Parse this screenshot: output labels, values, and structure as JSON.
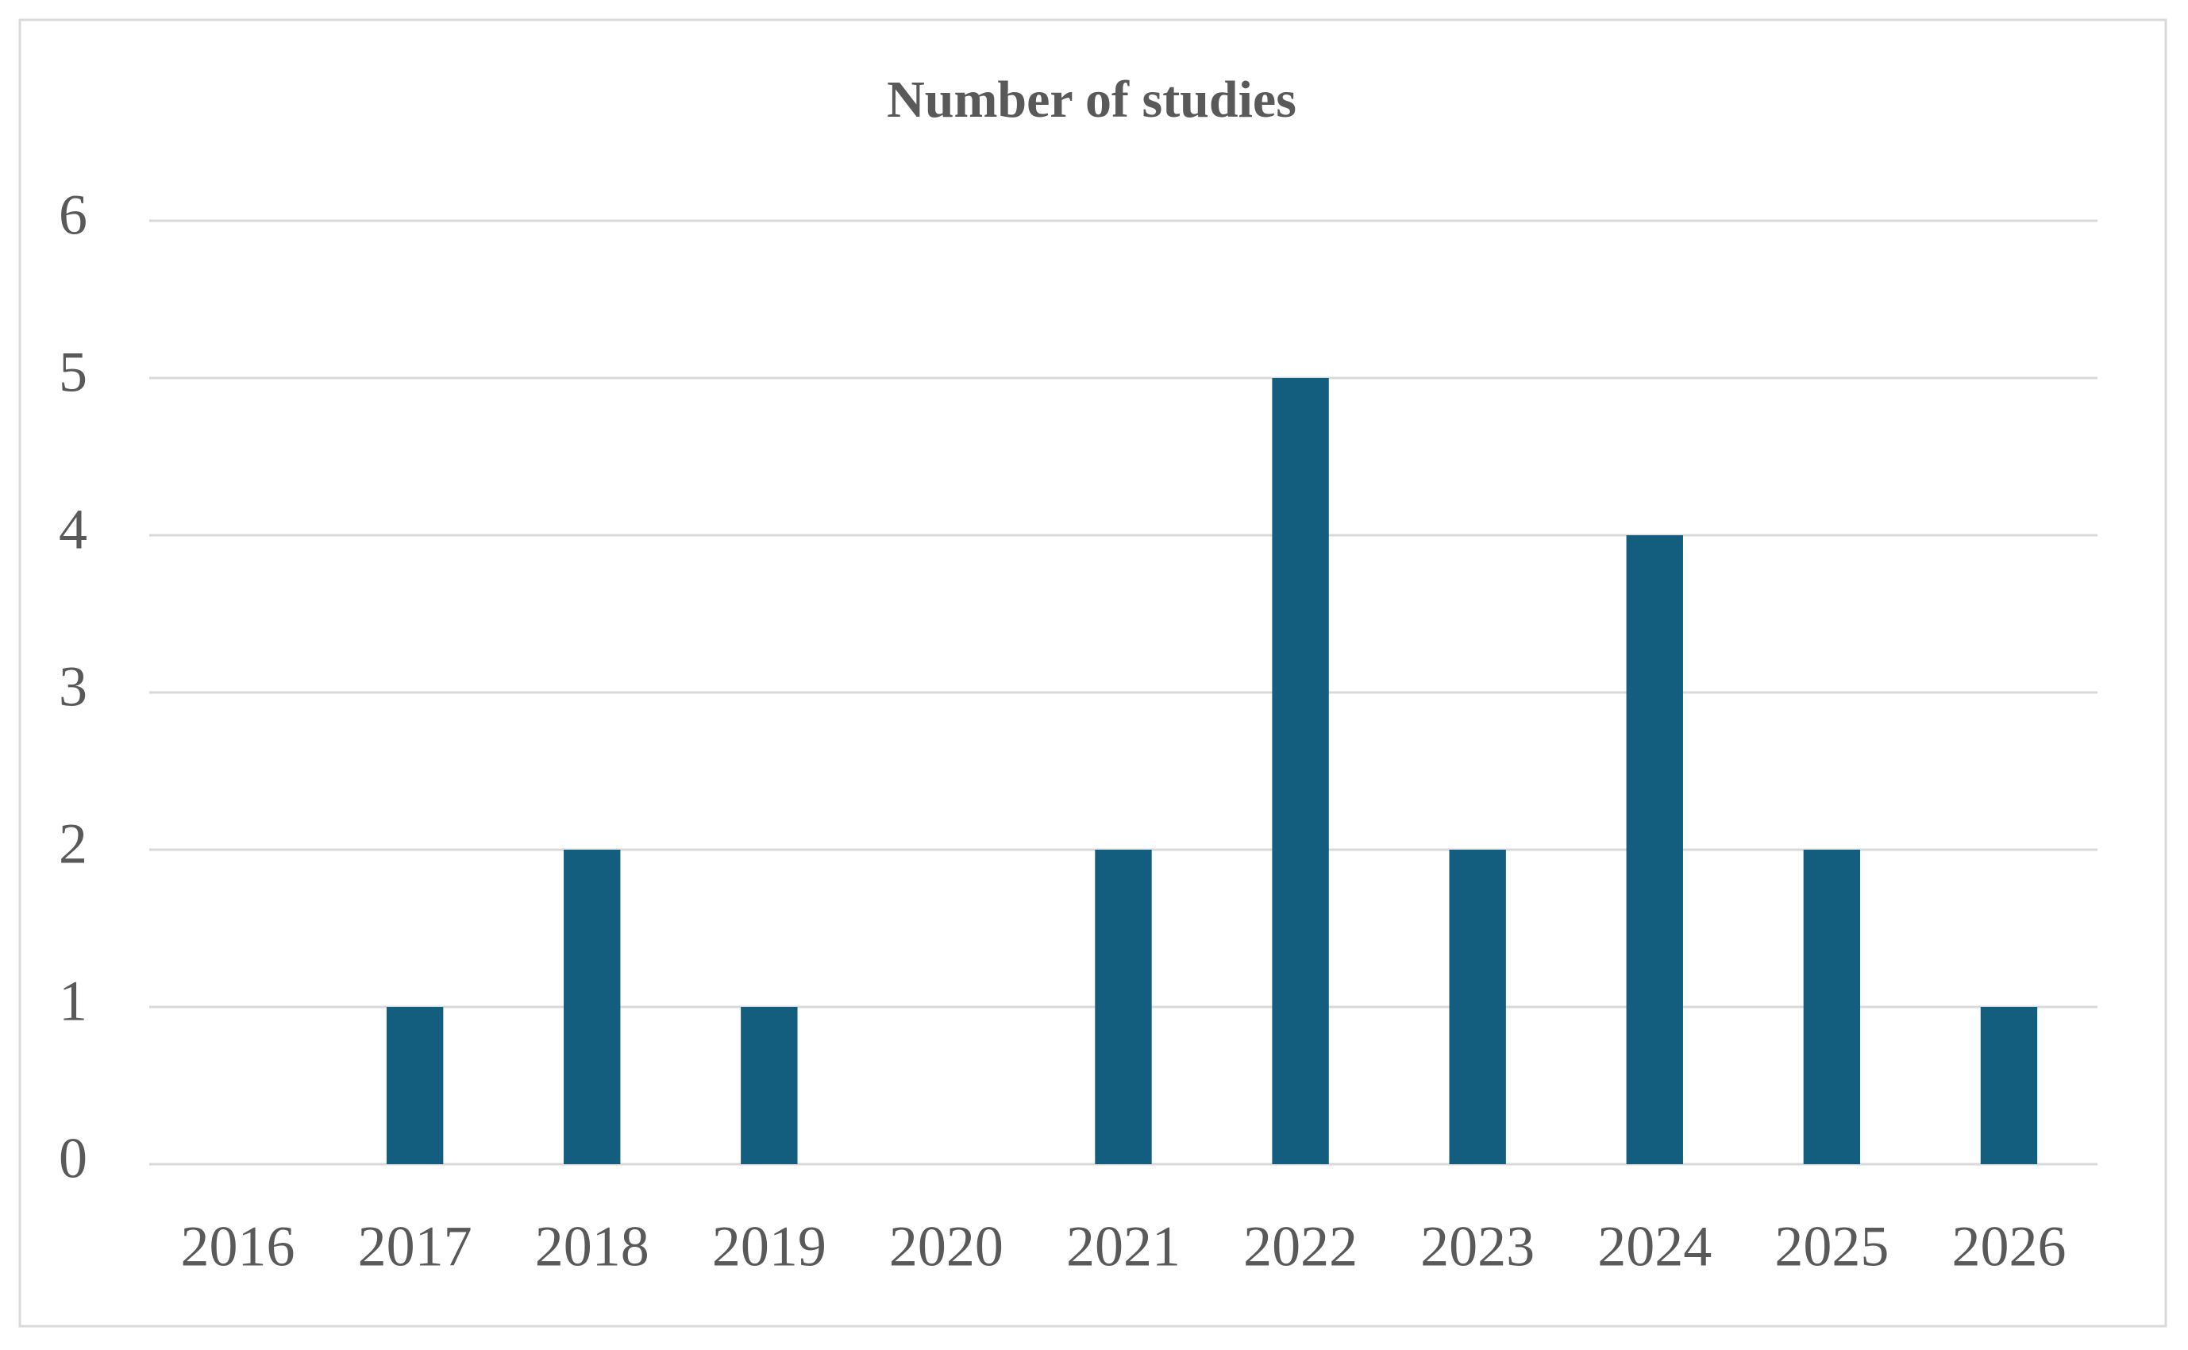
{
  "chart_data": {
    "type": "bar",
    "title": "Number of studies",
    "categories": [
      "2016",
      "2017",
      "2018",
      "2019",
      "2020",
      "2021",
      "2022",
      "2023",
      "2024",
      "2025",
      "2026"
    ],
    "values": [
      0,
      1,
      2,
      1,
      0,
      2,
      5,
      2,
      4,
      2,
      1
    ],
    "color": "#135e7e",
    "ylim": [
      0,
      6
    ],
    "yticks": [
      0,
      1,
      2,
      3,
      4,
      5,
      6
    ],
    "grid": true
  }
}
